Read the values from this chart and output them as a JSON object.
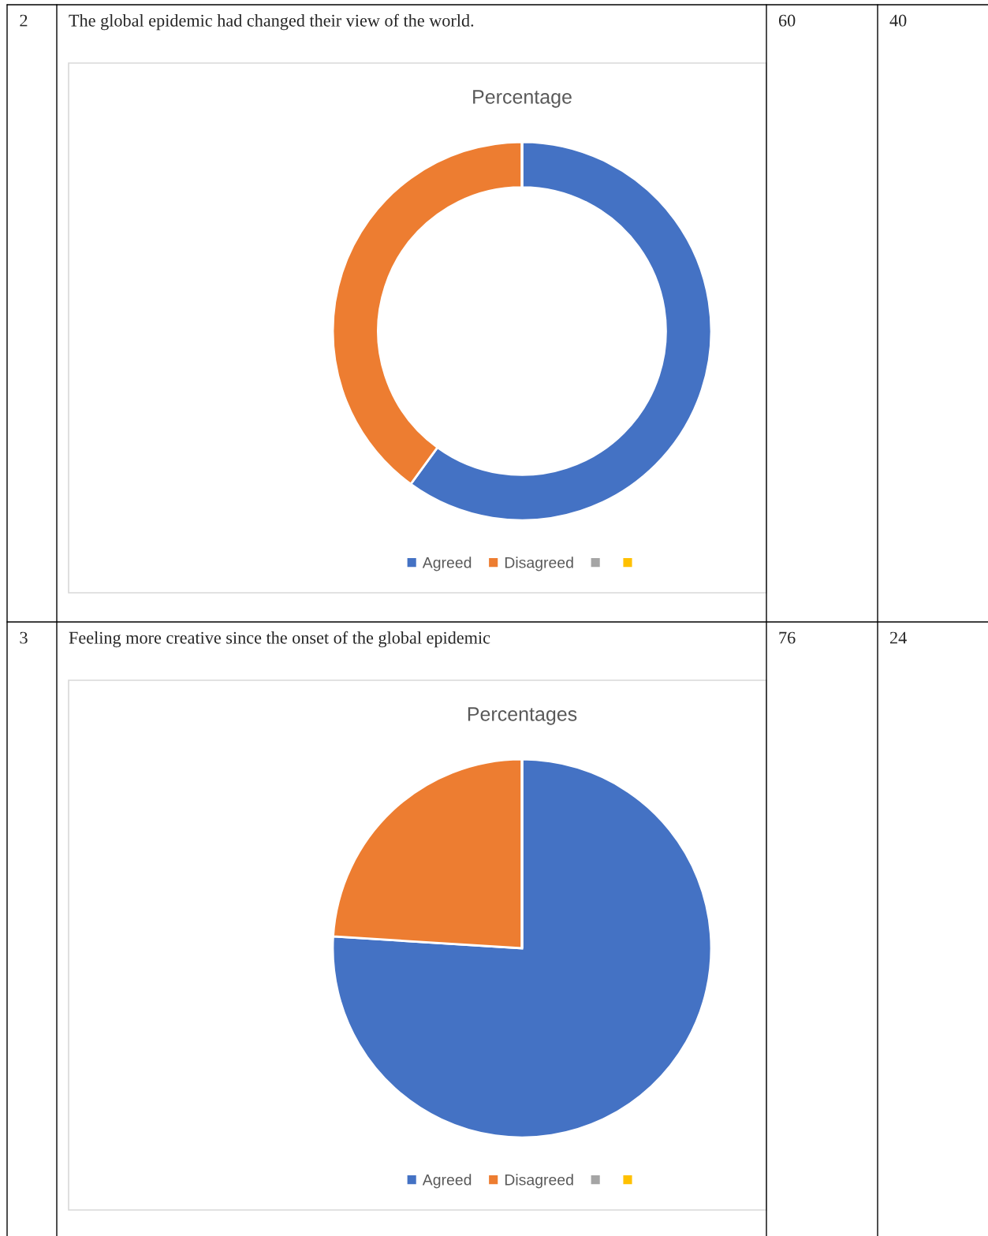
{
  "chart_data": [
    {
      "type": "donut",
      "title": "Percentage",
      "subtitle": "The global epidemic had changed their view of the world.",
      "annotations": [
        "2",
        "60",
        "40"
      ],
      "categories": [
        "Agreed",
        "Disagreed",
        null,
        null
      ],
      "values": [
        60,
        40,
        0,
        0
      ],
      "colors": [
        "#4472c4",
        "#ed7d31",
        "#a5a5a5",
        "#ffc000"
      ],
      "legend": "bottom"
    },
    {
      "type": "pie",
      "title": "Percentages",
      "subtitle": "Feeling more creative since the onset of the global epidemic",
      "annotations": [
        "3",
        "76",
        "24"
      ],
      "categories": [
        "Agreed",
        "Disagreed",
        null,
        null
      ],
      "values": [
        76,
        24,
        0,
        0
      ],
      "colors": [
        "#4472c4",
        "#ed7d31",
        "#a5a5a5",
        "#ffc000"
      ],
      "legend": "bottom"
    }
  ]
}
